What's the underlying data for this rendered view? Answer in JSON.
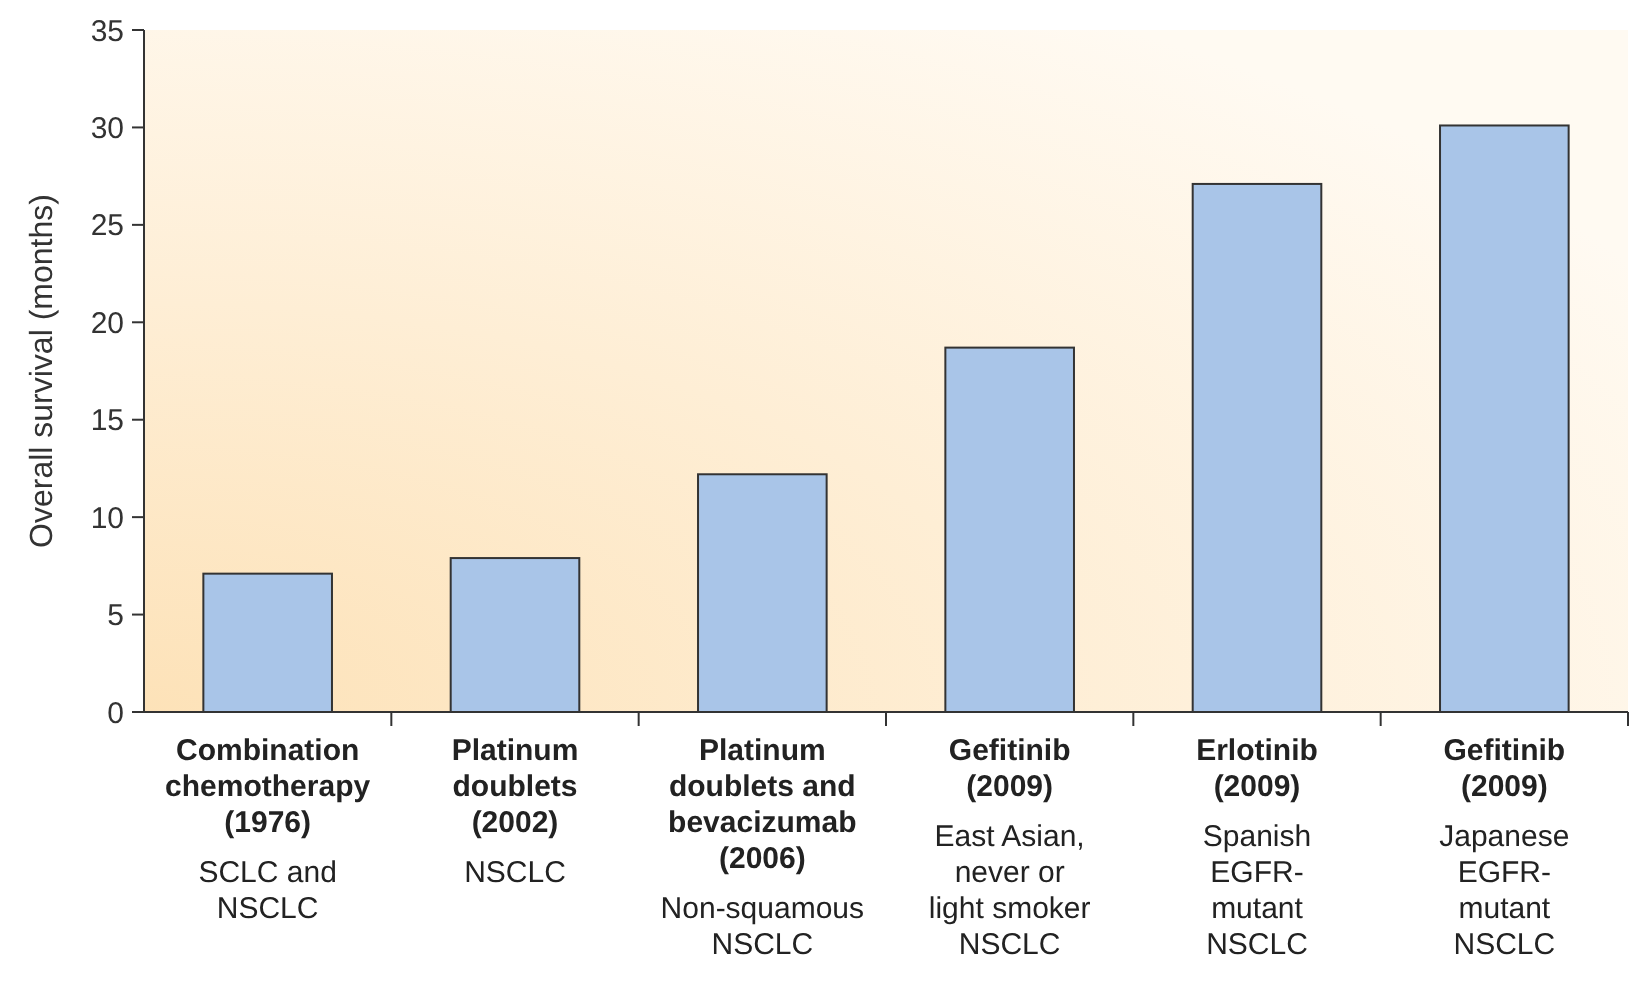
{
  "chart_data": {
    "type": "bar",
    "ylabel": "Overall survival (months)",
    "categories": [
      "Combination\nchemotherapy\n(1976)\n\nSCLC and\nNSCLC",
      "Platinum\ndoublets\n(2002)\n\nNSCLC",
      "Platinum\ndoublets and\nbevacizumab\n(2006)\n\nNon-squamous\nNSCLC",
      "Gefitinib\n(2009)\n\nEast Asian,\nnever or\nlight smoker\nNSCLC",
      "Erlotinib\n(2009)\n\nSpanish\nEGFR-\nmutant\nNSCLC",
      "Gefitinib\n(2009)\n\nJapanese\nEGFR-\nmutant\nNSCLC"
    ],
    "values": [
      7.1,
      7.9,
      12.2,
      18.7,
      27.1,
      30.1
    ],
    "color": "#a9c5e8",
    "ylim": [
      0,
      35
    ],
    "yticks": [
      0,
      5,
      10,
      15,
      20,
      25,
      30,
      35
    ],
    "grid": false
  }
}
